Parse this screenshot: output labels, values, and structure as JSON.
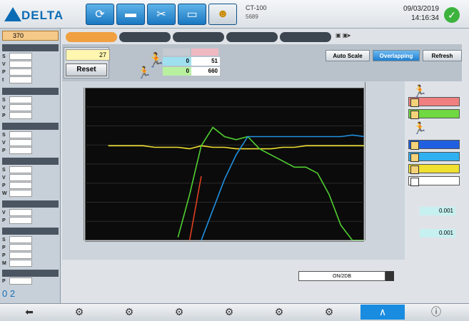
{
  "header": {
    "logo": "DELTA",
    "device_name": "CT-100",
    "device_sub": "5689",
    "date": "09/03/2019",
    "time": "14:16:34"
  },
  "left_panel": {
    "counter": "370",
    "footer_counts": "0 2"
  },
  "tabs": [],
  "controls": {
    "value_1": "27",
    "reset_label": "Reset",
    "reading_1": "0",
    "reading_2": "0",
    "reading_3": "51",
    "reading_4": "660"
  },
  "toolbar": {
    "auto_scale": "Auto Scale",
    "overlapping": "Overlapping",
    "refresh": "Refresh"
  },
  "right_panel": {
    "value_a": "0.001",
    "value_b": "0.001"
  },
  "dropdown": {
    "value": "ON/2DB"
  },
  "chart_data": {
    "type": "line",
    "series": [
      {
        "color": "#f0e030",
        "values": [
          null,
          null,
          0.62,
          0.62,
          0.62,
          0.62,
          0.61,
          0.61,
          0.61,
          0.6,
          0.62,
          0.61,
          0.61,
          0.6,
          0.6,
          0.6,
          0.6,
          0.61,
          0.61,
          0.62,
          0.62,
          0.62,
          0.62,
          0.62,
          0.62
        ]
      },
      {
        "color": "#50d030",
        "values": [
          null,
          null,
          null,
          null,
          null,
          null,
          null,
          null,
          0.02,
          0.3,
          0.62,
          0.74,
          0.68,
          0.66,
          0.68,
          0.6,
          0.56,
          0.52,
          0.48,
          0.48,
          0.44,
          0.3,
          0.1,
          0.0,
          0.0
        ]
      },
      {
        "color": "#2090e0",
        "values": [
          null,
          null,
          null,
          null,
          null,
          null,
          null,
          null,
          null,
          null,
          0.0,
          0.2,
          0.4,
          0.56,
          0.68,
          0.68,
          0.68,
          0.68,
          0.68,
          0.68,
          0.68,
          0.68,
          0.68,
          0.69,
          0.68
        ]
      },
      {
        "color": "#e04020",
        "values": [
          null,
          null,
          null,
          null,
          null,
          null,
          null,
          null,
          null,
          0.0,
          0.42,
          null,
          null,
          null,
          null,
          null,
          null,
          null,
          null,
          null,
          null,
          null,
          null,
          null,
          null
        ]
      }
    ]
  }
}
